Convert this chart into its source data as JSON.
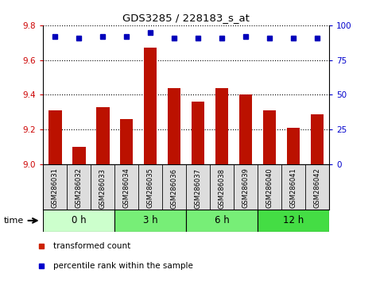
{
  "title": "GDS3285 / 228183_s_at",
  "samples": [
    "GSM286031",
    "GSM286032",
    "GSM286033",
    "GSM286034",
    "GSM286035",
    "GSM286036",
    "GSM286037",
    "GSM286038",
    "GSM286039",
    "GSM286040",
    "GSM286041",
    "GSM286042"
  ],
  "red_values": [
    9.31,
    9.1,
    9.33,
    9.26,
    9.67,
    9.44,
    9.36,
    9.44,
    9.4,
    9.31,
    9.21,
    9.29
  ],
  "blue_values": [
    92,
    91,
    92,
    92,
    95,
    91,
    91,
    91,
    92,
    91,
    91,
    91
  ],
  "ylim_left": [
    9.0,
    9.8
  ],
  "ylim_right": [
    0,
    100
  ],
  "yticks_left": [
    9.0,
    9.2,
    9.4,
    9.6,
    9.8
  ],
  "yticks_right": [
    0,
    25,
    50,
    75,
    100
  ],
  "groups": [
    {
      "label": "0 h",
      "start": 0,
      "end": 3,
      "color": "#ccffcc"
    },
    {
      "label": "3 h",
      "start": 3,
      "end": 6,
      "color": "#77ee77"
    },
    {
      "label": "6 h",
      "start": 6,
      "end": 9,
      "color": "#77ee77"
    },
    {
      "label": "12 h",
      "start": 9,
      "end": 12,
      "color": "#44dd44"
    }
  ],
  "bar_color": "#bb1100",
  "dot_color": "#0000bb",
  "background_color": "#ffffff",
  "tick_label_color_left": "#cc0000",
  "tick_label_color_right": "#0000cc",
  "sample_box_color": "#dddddd",
  "legend_bar_color": "#cc2200",
  "legend_dot_color": "#0000cc"
}
